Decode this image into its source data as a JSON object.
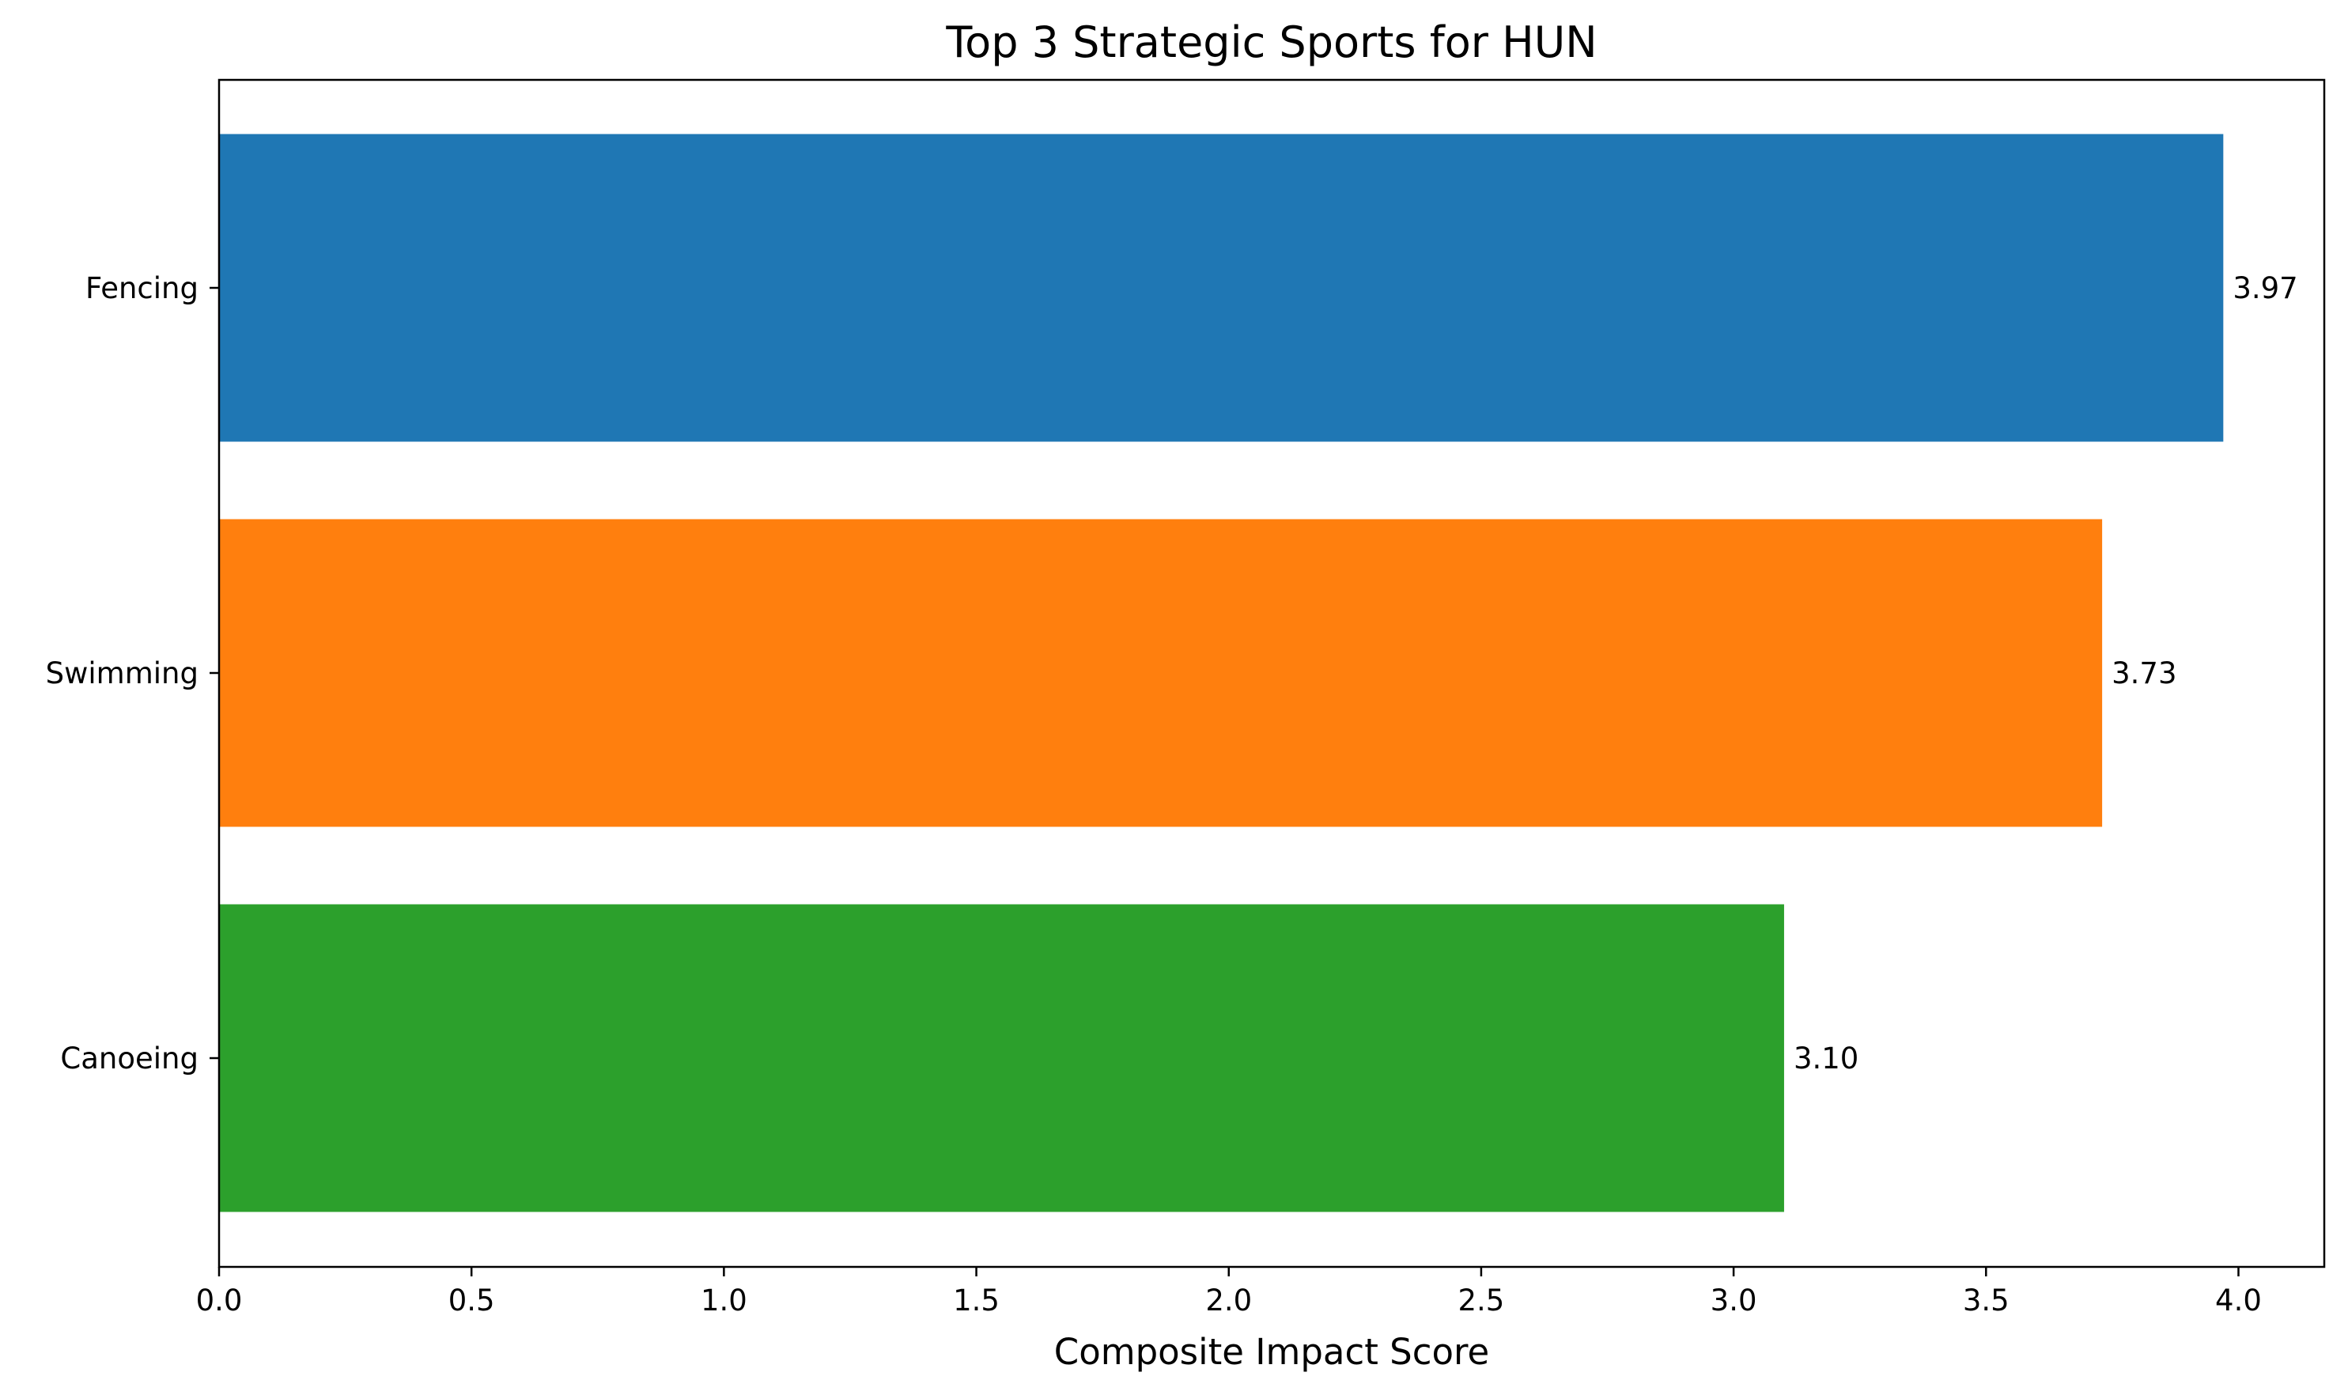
{
  "chart_data": {
    "type": "bar",
    "orientation": "horizontal",
    "title": "Top 3 Strategic Sports for HUN",
    "xlabel": "Composite Impact Score",
    "ylabel": "",
    "categories": [
      "Fencing",
      "Swimming",
      "Canoeing"
    ],
    "values": [
      3.97,
      3.73,
      3.1
    ],
    "value_labels": [
      "3.97",
      "3.73",
      "3.10"
    ],
    "colors": [
      "#1f77b4",
      "#ff7f0e",
      "#2ca02c"
    ],
    "xlim": [
      0,
      4.17
    ],
    "xticks": [
      0.0,
      0.5,
      1.0,
      1.5,
      2.0,
      2.5,
      3.0,
      3.5,
      4.0
    ],
    "xtick_labels": [
      "0.0",
      "0.5",
      "1.0",
      "1.5",
      "2.0",
      "2.5",
      "3.0",
      "3.5",
      "4.0"
    ],
    "grid": false,
    "legend": "none"
  }
}
